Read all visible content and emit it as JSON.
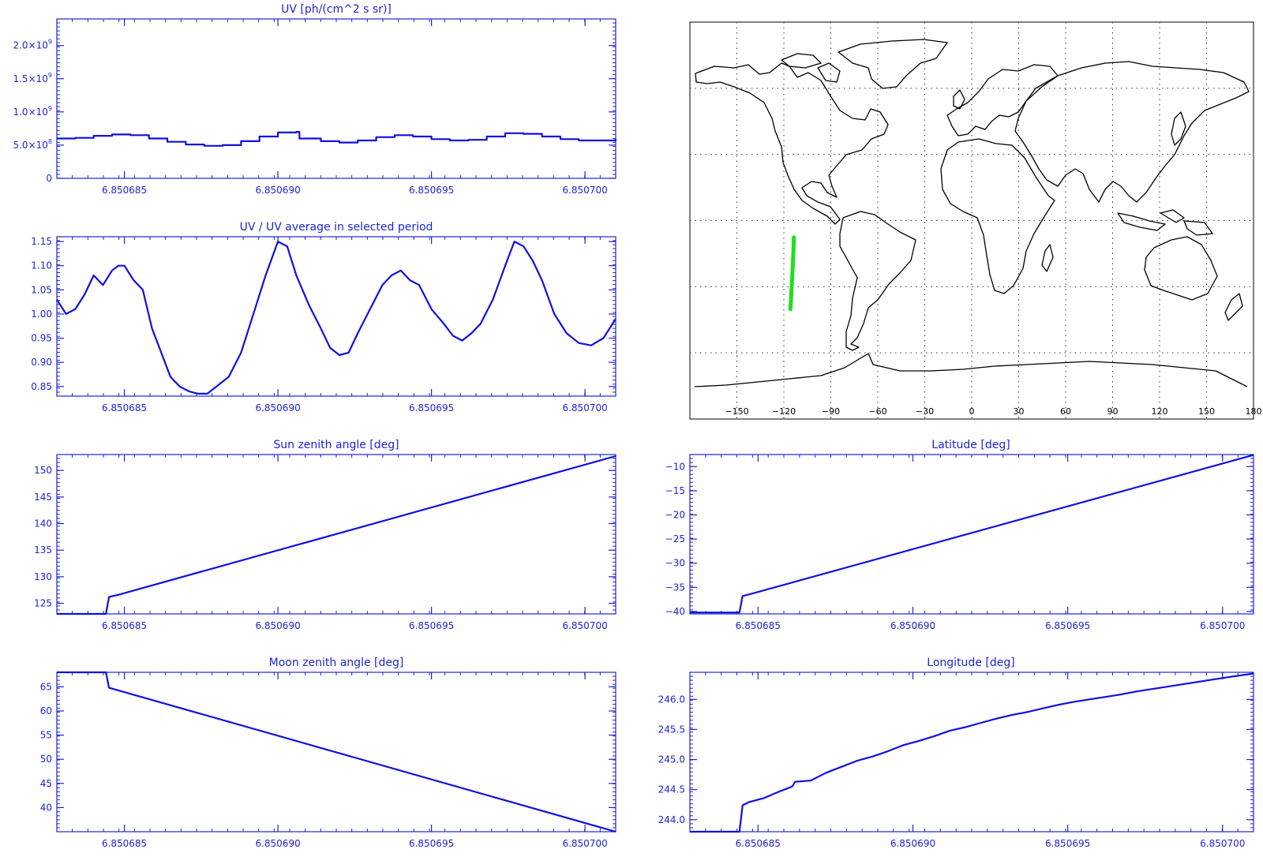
{
  "colors": {
    "axis": "#1f24d6",
    "line": "#1010e0",
    "track": "#22dd22",
    "map": "#000000",
    "grid": "#333333",
    "background": "#ffffff"
  },
  "chart_data": [
    {
      "id": "uv",
      "type": "line",
      "title": "UV [ph/(cm^2 s sr)]",
      "step": true,
      "xlim": [
        6.8506828,
        6.850701
      ],
      "ylim": [
        0,
        2400000000
      ],
      "x_ticks": [
        6.850685,
        6.85069,
        6.850695,
        6.8507
      ],
      "x_tick_labels": [
        "6.850685",
        "6.850690",
        "6.850695",
        "6.850700"
      ],
      "y_ticks": [
        0,
        500000000,
        1000000000,
        1500000000,
        2000000000
      ],
      "y_tick_labels": [
        {
          "mantissa": "0",
          "exp": ""
        },
        {
          "mantissa": "5.0×10",
          "exp": "8"
        },
        {
          "mantissa": "1.0×10",
          "exp": "9"
        },
        {
          "mantissa": "1.5×10",
          "exp": "9"
        },
        {
          "mantissa": "2.0×10",
          "exp": "9"
        }
      ],
      "x": [
        6.8506828,
        6.8506834,
        6.850684,
        6.8506846,
        6.8506852,
        6.8506858,
        6.8506864,
        6.850687,
        6.8506876,
        6.8506882,
        6.8506888,
        6.8506894,
        6.85069,
        6.8506906,
        6.8506907,
        6.8506914,
        6.850692,
        6.8506926,
        6.8506932,
        6.8506938,
        6.8506944,
        6.850695,
        6.8506956,
        6.8506962,
        6.8506968,
        6.8506974,
        6.850698,
        6.8506986,
        6.8506992,
        6.8506998,
        6.8507004,
        6.850701
      ],
      "y": [
        600000000,
        610000000,
        640000000,
        660000000,
        650000000,
        600000000,
        550000000,
        510000000,
        490000000,
        500000000,
        560000000,
        630000000,
        690000000,
        700000000,
        600000000,
        560000000,
        540000000,
        570000000,
        620000000,
        650000000,
        630000000,
        590000000,
        570000000,
        580000000,
        630000000,
        680000000,
        670000000,
        630000000,
        590000000,
        570000000,
        570000000,
        590000000
      ]
    },
    {
      "id": "uv_ratio",
      "type": "line",
      "title": "UV / UV average in selected period",
      "xlim": [
        6.8506828,
        6.850701
      ],
      "ylim": [
        0.83,
        1.16
      ],
      "x_ticks": [
        6.850685,
        6.85069,
        6.850695,
        6.8507
      ],
      "x_tick_labels": [
        "6.850685",
        "6.850690",
        "6.850695",
        "6.850700"
      ],
      "y_ticks": [
        0.85,
        0.9,
        0.95,
        1.0,
        1.05,
        1.1,
        1.15
      ],
      "y_tick_labels": [
        "0.85",
        "0.90",
        "0.95",
        "1.00",
        "1.05",
        "1.10",
        "1.15"
      ],
      "x": [
        6.8506828,
        6.8506831,
        6.8506834,
        6.8506837,
        6.850684,
        6.8506843,
        6.8506846,
        6.8506848,
        6.850685,
        6.8506853,
        6.8506856,
        6.8506859,
        6.8506862,
        6.8506865,
        6.8506868,
        6.8506871,
        6.8506874,
        6.8506877,
        6.850688,
        6.8506884,
        6.8506888,
        6.8506892,
        6.8506896,
        6.85069,
        6.8506903,
        6.8506906,
        6.850691,
        6.8506914,
        6.8506917,
        6.850692,
        6.8506923,
        6.8506926,
        6.850693,
        6.8506934,
        6.8506937,
        6.850694,
        6.8506943,
        6.8506946,
        6.850695,
        6.8506954,
        6.8506957,
        6.850696,
        6.8506963,
        6.8506966,
        6.850697,
        6.8506974,
        6.8506977,
        6.850698,
        6.8506983,
        6.8506986,
        6.850699,
        6.8506994,
        6.8506998,
        6.8507002,
        6.8507006,
        6.850701
      ],
      "y": [
        1.03,
        1.0,
        1.01,
        1.04,
        1.08,
        1.06,
        1.09,
        1.1,
        1.1,
        1.07,
        1.05,
        0.97,
        0.92,
        0.87,
        0.85,
        0.84,
        0.835,
        0.835,
        0.85,
        0.87,
        0.92,
        1.0,
        1.08,
        1.15,
        1.14,
        1.08,
        1.02,
        0.97,
        0.93,
        0.915,
        0.92,
        0.96,
        1.01,
        1.06,
        1.08,
        1.09,
        1.07,
        1.06,
        1.01,
        0.98,
        0.955,
        0.945,
        0.96,
        0.98,
        1.03,
        1.1,
        1.15,
        1.14,
        1.11,
        1.07,
        1.0,
        0.96,
        0.94,
        0.935,
        0.95,
        0.99
      ]
    },
    {
      "id": "sun_zenith",
      "type": "line",
      "title": "Sun zenith angle [deg]",
      "xlim": [
        6.8506828,
        6.850701
      ],
      "ylim": [
        123,
        153
      ],
      "x_ticks": [
        6.850685,
        6.85069,
        6.850695,
        6.8507
      ],
      "x_tick_labels": [
        "6.850685",
        "6.850690",
        "6.850695",
        "6.850700"
      ],
      "y_ticks": [
        125,
        130,
        135,
        140,
        145,
        150
      ],
      "y_tick_labels": [
        "125",
        "130",
        "135",
        "140",
        "145",
        "150"
      ],
      "x": [
        6.8506828,
        6.8506844,
        6.8506845,
        6.8506848,
        6.850701
      ],
      "y": [
        123.0,
        123.0,
        126.2,
        126.6,
        152.7
      ]
    },
    {
      "id": "moon_zenith",
      "type": "line",
      "title": "Moon zenith angle [deg]",
      "xlim": [
        6.8506828,
        6.850701
      ],
      "ylim": [
        35,
        68
      ],
      "x_ticks": [
        6.850685,
        6.85069,
        6.850695,
        6.8507
      ],
      "x_tick_labels": [
        "6.850685",
        "6.850690",
        "6.850695",
        "6.850700"
      ],
      "y_ticks": [
        40,
        45,
        50,
        55,
        60,
        65
      ],
      "y_tick_labels": [
        "40",
        "45",
        "50",
        "55",
        "60",
        "65"
      ],
      "x": [
        6.8506828,
        6.8506844,
        6.8506845,
        6.850701
      ],
      "y": [
        68.0,
        68.0,
        64.8,
        35.0
      ]
    },
    {
      "id": "latitude",
      "type": "line",
      "title": "Latitude [deg]",
      "xlim": [
        6.8506828,
        6.850701
      ],
      "ylim": [
        -40.5,
        -7.5
      ],
      "x_ticks": [
        6.850685,
        6.85069,
        6.850695,
        6.8507
      ],
      "x_tick_labels": [
        "6.850685",
        "6.850690",
        "6.850695",
        "6.850700"
      ],
      "y_ticks": [
        -40,
        -35,
        -30,
        -25,
        -20,
        -15,
        -10
      ],
      "y_tick_labels": [
        "−40",
        "−35",
        "−30",
        "−25",
        "−20",
        "−15",
        "−10"
      ],
      "x": [
        6.8506828,
        6.8506844,
        6.8506845,
        6.8506848,
        6.850701
      ],
      "y": [
        -40.2,
        -40.2,
        -36.8,
        -36.3,
        -7.6
      ]
    },
    {
      "id": "longitude",
      "type": "line",
      "title": "Longitude [deg]",
      "xlim": [
        6.8506828,
        6.850701
      ],
      "ylim": [
        243.8,
        246.45
      ],
      "x_ticks": [
        6.850685,
        6.85069,
        6.850695,
        6.8507
      ],
      "x_tick_labels": [
        "6.850685",
        "6.850690",
        "6.850695",
        "6.850700"
      ],
      "y_ticks": [
        244.0,
        244.5,
        245.0,
        245.5,
        246.0
      ],
      "y_tick_labels": [
        "244.0",
        "244.5",
        "245.0",
        "245.5",
        "246.0"
      ],
      "x": [
        6.8506828,
        6.8506844,
        6.8506845,
        6.8506847,
        6.8506852,
        6.8506856,
        6.8506861,
        6.8506862,
        6.8506867,
        6.8506872,
        6.8506877,
        6.8506882,
        6.8506887,
        6.8506892,
        6.8506897,
        6.8506902,
        6.8506907,
        6.8506912,
        6.8506917,
        6.8506922,
        6.8506927,
        6.8506932,
        6.8506937,
        6.8506942,
        6.8506947,
        6.8506952,
        6.8506957,
        6.8506962,
        6.8506967,
        6.8506972,
        6.8506977,
        6.8506982,
        6.8506987,
        6.8506992,
        6.8506997,
        6.8507002,
        6.850701
      ],
      "y": [
        243.8,
        243.8,
        244.24,
        244.29,
        244.36,
        244.45,
        244.55,
        244.63,
        244.65,
        244.78,
        244.88,
        244.98,
        245.05,
        245.14,
        245.24,
        245.31,
        245.39,
        245.48,
        245.54,
        245.61,
        245.68,
        245.74,
        245.79,
        245.85,
        245.91,
        245.96,
        246.0,
        246.04,
        246.08,
        246.13,
        246.17,
        246.21,
        246.25,
        246.29,
        246.33,
        246.37,
        246.43
      ]
    },
    {
      "id": "ground_track_map",
      "type": "map",
      "projection": "equirectangular",
      "lon_range": [
        -180,
        180
      ],
      "lat_range": [
        -90,
        90
      ],
      "grid_lon": [
        -150,
        -120,
        -90,
        -60,
        -30,
        0,
        30,
        60,
        90,
        120,
        150
      ],
      "grid_lat": [
        -60,
        -30,
        0,
        30,
        60
      ],
      "x_tick_labels": [
        "−150",
        "−120",
        "−90",
        "−60",
        "−30",
        "0",
        "30",
        "60",
        "90",
        "120",
        "150",
        "180"
      ],
      "x_tick_values": [
        -150,
        -120,
        -90,
        -60,
        -30,
        0,
        30,
        60,
        90,
        120,
        150,
        180
      ],
      "track": {
        "lon": [
          -115.8,
          -115.2,
          -114.6,
          -114.0,
          -113.6
        ],
        "lat": [
          -40.2,
          -33.0,
          -25.0,
          -16.0,
          -7.6
        ]
      }
    }
  ]
}
